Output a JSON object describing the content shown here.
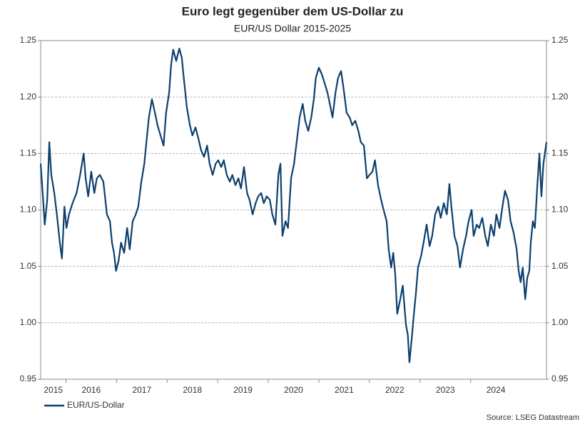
{
  "chart_data": {
    "type": "line",
    "title": "Euro legt gegenüber dem US-Dollar zu",
    "subtitle": "EUR/US Dollar 2015-2025",
    "source": "Source: LSEG Datastream",
    "xlim": [
      2015.5,
      2025.5
    ],
    "xticks": [
      2015,
      2016,
      2017,
      2018,
      2019,
      2020,
      2021,
      2022,
      2023,
      2024
    ],
    "ylim": [
      0.95,
      1.25
    ],
    "yticks": [
      {
        "value": 0.95,
        "label": "0.95"
      },
      {
        "value": 1.0,
        "label": "1.00"
      },
      {
        "value": 1.05,
        "label": "1.05"
      },
      {
        "value": 1.1,
        "label": "1.10"
      },
      {
        "value": 1.15,
        "label": "1.15"
      },
      {
        "value": 1.2,
        "label": "1.20"
      },
      {
        "value": 1.25,
        "label": "1.25"
      }
    ],
    "grid": true,
    "legend": "bottom-left",
    "x": [
      2015.5,
      2015.54,
      2015.58,
      2015.63,
      2015.67,
      2015.71,
      2015.77,
      2015.82,
      2015.88,
      2015.92,
      2015.97,
      2016.01,
      2016.06,
      2016.13,
      2016.21,
      2016.28,
      2016.35,
      2016.39,
      2016.44,
      2016.5,
      2016.56,
      2016.61,
      2016.67,
      2016.74,
      2016.81,
      2016.87,
      2016.91,
      2016.95,
      2016.99,
      2017.04,
      2017.09,
      2017.15,
      2017.21,
      2017.26,
      2017.32,
      2017.38,
      2017.43,
      2017.49,
      2017.55,
      2017.59,
      2017.64,
      2017.7,
      2017.76,
      2017.81,
      2017.87,
      2017.93,
      2017.98,
      2018.04,
      2018.08,
      2018.12,
      2018.18,
      2018.24,
      2018.29,
      2018.33,
      2018.39,
      2018.45,
      2018.5,
      2018.56,
      2018.62,
      2018.67,
      2018.73,
      2018.79,
      2018.84,
      2018.9,
      2018.96,
      2019.01,
      2019.07,
      2019.12,
      2019.18,
      2019.24,
      2019.29,
      2019.35,
      2019.41,
      2019.46,
      2019.52,
      2019.58,
      2019.63,
      2019.69,
      2019.75,
      2019.8,
      2019.86,
      2019.91,
      2019.97,
      2020.03,
      2020.08,
      2020.14,
      2020.2,
      2020.24,
      2020.28,
      2020.34,
      2020.39,
      2020.45,
      2020.51,
      2020.56,
      2020.62,
      2020.68,
      2020.73,
      2020.79,
      2020.85,
      2020.9,
      2020.94,
      2021.0,
      2021.06,
      2021.11,
      2021.17,
      2021.23,
      2021.27,
      2021.33,
      2021.38,
      2021.44,
      2021.49,
      2021.55,
      2021.61,
      2021.66,
      2021.72,
      2021.78,
      2021.83,
      2021.89,
      2021.95,
      2022.0,
      2022.06,
      2022.11,
      2022.17,
      2022.23,
      2022.28,
      2022.34,
      2022.38,
      2022.43,
      2022.47,
      2022.51,
      2022.55,
      2022.61,
      2022.66,
      2022.72,
      2022.76,
      2022.79,
      2022.83,
      2022.88,
      2022.92,
      2022.96,
      2023.02,
      2023.07,
      2023.13,
      2023.19,
      2023.24,
      2023.3,
      2023.36,
      2023.41,
      2023.47,
      2023.53,
      2023.58,
      2023.62,
      2023.68,
      2023.74,
      2023.79,
      2023.85,
      2023.91,
      2023.96,
      2024.02,
      2024.06,
      2024.12,
      2024.17,
      2024.23,
      2024.29,
      2024.34,
      2024.4,
      2024.46,
      2024.51,
      2024.57,
      2024.63,
      2024.68,
      2024.74,
      2024.79,
      2024.85,
      2024.91,
      2024.95,
      2024.99,
      2025.03,
      2025.08,
      2025.12,
      2025.16,
      2025.19,
      2025.23,
      2025.27,
      2025.32,
      2025.36,
      2025.4,
      2025.44,
      2025.5
    ],
    "series": [
      {
        "name": "EUR/US-Dollar",
        "color": "#0b3f6e",
        "values": [
          1.141,
          1.115,
          1.087,
          1.109,
          1.16,
          1.131,
          1.115,
          1.096,
          1.071,
          1.057,
          1.103,
          1.084,
          1.096,
          1.106,
          1.115,
          1.131,
          1.15,
          1.128,
          1.112,
          1.134,
          1.115,
          1.128,
          1.131,
          1.125,
          1.096,
          1.09,
          1.071,
          1.062,
          1.046,
          1.055,
          1.071,
          1.062,
          1.084,
          1.065,
          1.09,
          1.096,
          1.103,
          1.125,
          1.141,
          1.16,
          1.182,
          1.198,
          1.186,
          1.175,
          1.166,
          1.157,
          1.186,
          1.204,
          1.229,
          1.242,
          1.232,
          1.243,
          1.235,
          1.217,
          1.191,
          1.175,
          1.166,
          1.173,
          1.163,
          1.153,
          1.147,
          1.157,
          1.141,
          1.131,
          1.141,
          1.144,
          1.138,
          1.144,
          1.131,
          1.125,
          1.131,
          1.122,
          1.128,
          1.119,
          1.138,
          1.115,
          1.109,
          1.096,
          1.106,
          1.112,
          1.115,
          1.106,
          1.112,
          1.109,
          1.096,
          1.087,
          1.131,
          1.141,
          1.077,
          1.09,
          1.084,
          1.128,
          1.141,
          1.16,
          1.182,
          1.194,
          1.179,
          1.17,
          1.182,
          1.198,
          1.217,
          1.226,
          1.22,
          1.213,
          1.204,
          1.191,
          1.182,
          1.204,
          1.217,
          1.223,
          1.207,
          1.186,
          1.182,
          1.175,
          1.179,
          1.17,
          1.16,
          1.157,
          1.128,
          1.131,
          1.134,
          1.144,
          1.122,
          1.109,
          1.1,
          1.09,
          1.065,
          1.049,
          1.062,
          1.043,
          1.008,
          1.021,
          1.033,
          0.999,
          0.989,
          0.965,
          0.983,
          1.008,
          1.027,
          1.049,
          1.059,
          1.071,
          1.087,
          1.068,
          1.077,
          1.096,
          1.103,
          1.093,
          1.106,
          1.096,
          1.123,
          1.103,
          1.077,
          1.068,
          1.049,
          1.065,
          1.077,
          1.09,
          1.1,
          1.077,
          1.087,
          1.084,
          1.093,
          1.077,
          1.068,
          1.087,
          1.077,
          1.096,
          1.084,
          1.103,
          1.117,
          1.109,
          1.09,
          1.08,
          1.065,
          1.046,
          1.036,
          1.049,
          1.021,
          1.04,
          1.046,
          1.071,
          1.09,
          1.084,
          1.122,
          1.15,
          1.112,
          1.141,
          1.16
        ]
      }
    ]
  }
}
